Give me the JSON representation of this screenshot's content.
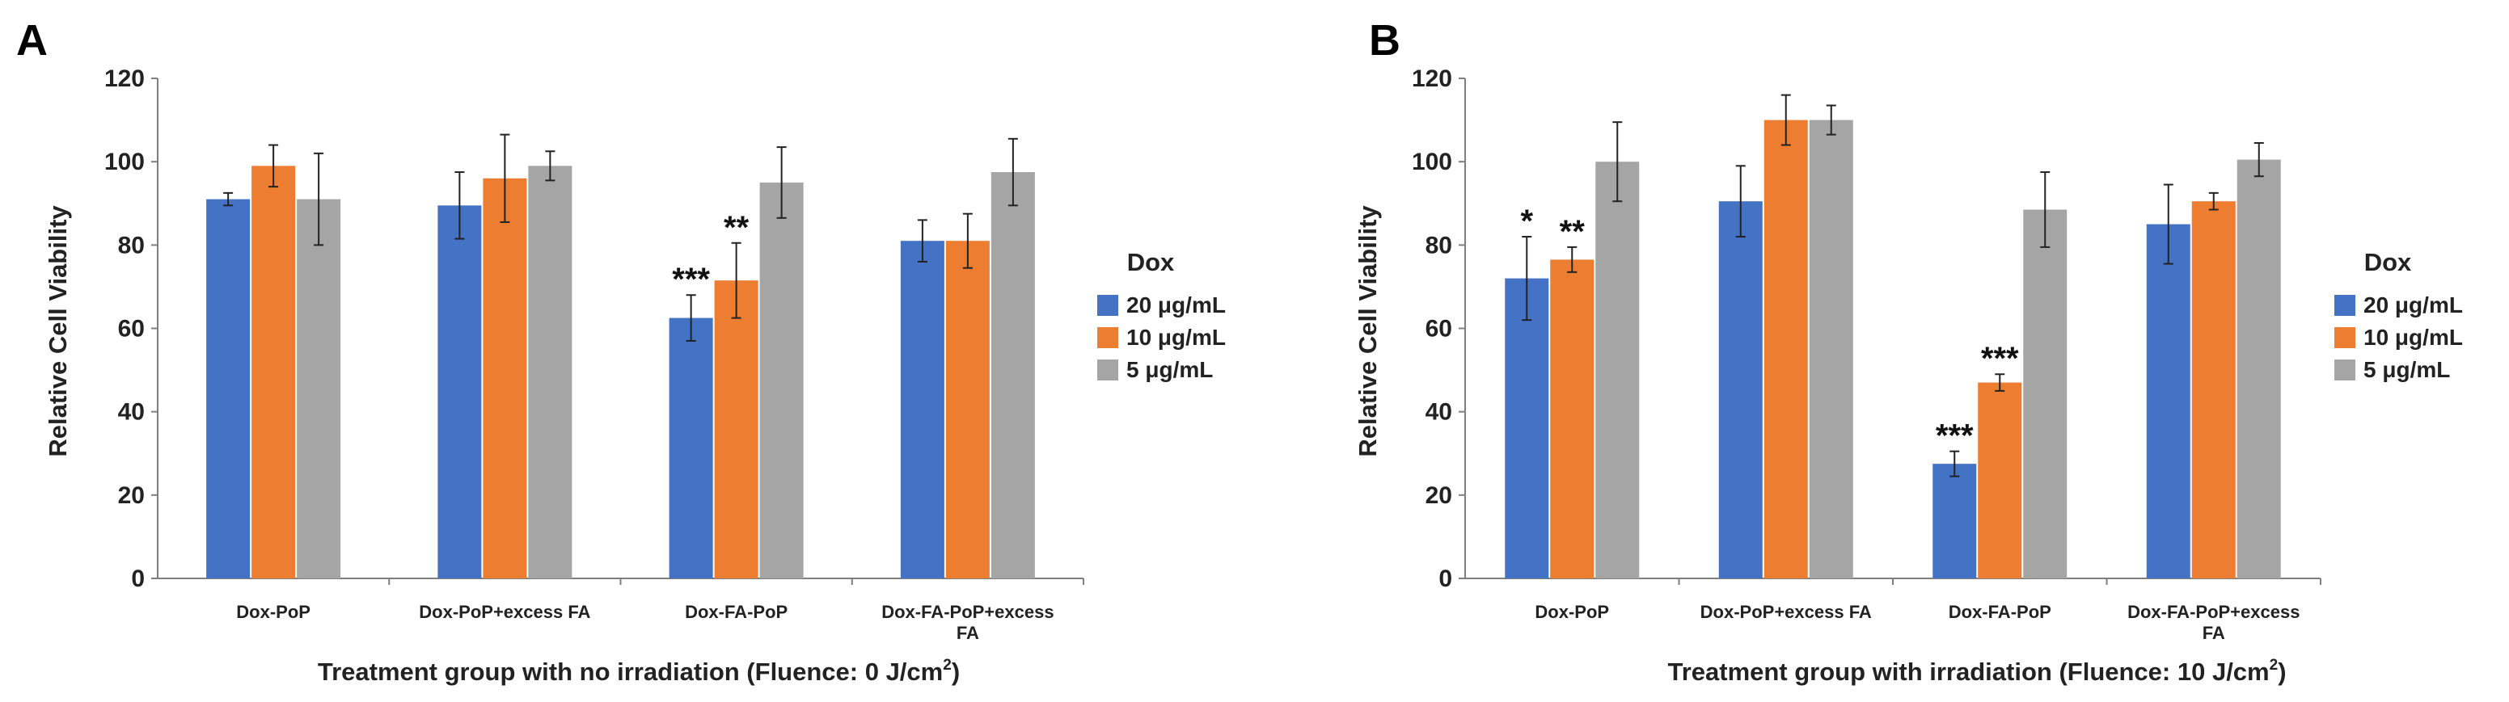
{
  "colors": {
    "s20": "#4472c4",
    "s10": "#ed7d31",
    "s5": "#a5a5a5",
    "axis": "#7f7f7f",
    "err": "#222222"
  },
  "chart_data": [
    {
      "type": "bar",
      "panel_label": "A",
      "categories": [
        "Dox-PoP",
        "Dox-PoP+excess FA",
        "Dox-FA-PoP",
        "Dox-FA-PoP+excess FA"
      ],
      "series": [
        {
          "name": "20 μg/mL",
          "color": "#4472c4",
          "values": [
            91,
            89.5,
            62.5,
            81
          ],
          "errors": [
            1.5,
            8,
            5.5,
            5
          ]
        },
        {
          "name": "10 μg/mL",
          "color": "#ed7d31",
          "values": [
            99,
            96,
            71.5,
            81
          ],
          "errors": [
            5,
            10.5,
            9,
            6.5
          ]
        },
        {
          "name": "5 μg/mL",
          "color": "#a5a5a5",
          "values": [
            91,
            99,
            95,
            97.5
          ],
          "errors": [
            11,
            3.5,
            8.5,
            8
          ]
        }
      ],
      "annotations": [
        {
          "category": 2,
          "series": 0,
          "text": "***"
        },
        {
          "category": 2,
          "series": 1,
          "text": "**"
        }
      ],
      "legend_title": "Dox",
      "xlabel_main": "Treatment group with no irradiation (Fluence: 0 J/cm",
      "xlabel_sup": "2",
      "xlabel_end": ")",
      "ylabel": "Relative Cell Viability",
      "ylim": [
        0,
        120
      ],
      "yticks": [
        0,
        20,
        40,
        60,
        80,
        100,
        120
      ],
      "legend_position": "right"
    },
    {
      "type": "bar",
      "panel_label": "B",
      "categories": [
        "Dox-PoP",
        "Dox-PoP+excess FA",
        "Dox-FA-PoP",
        "Dox-FA-PoP+excess FA"
      ],
      "series": [
        {
          "name": "20 μg/mL",
          "color": "#4472c4",
          "values": [
            72,
            90.5,
            27.5,
            85
          ],
          "errors": [
            10,
            8.5,
            3,
            9.5
          ]
        },
        {
          "name": "10 μg/mL",
          "color": "#ed7d31",
          "values": [
            76.5,
            110,
            47,
            90.5
          ],
          "errors": [
            3,
            6,
            2,
            2
          ]
        },
        {
          "name": "5 μg/mL",
          "color": "#a5a5a5",
          "values": [
            100,
            110,
            88.5,
            100.5
          ],
          "errors": [
            9.5,
            3.5,
            9,
            4
          ]
        }
      ],
      "annotations": [
        {
          "category": 0,
          "series": 0,
          "text": "*"
        },
        {
          "category": 0,
          "series": 1,
          "text": "**"
        },
        {
          "category": 2,
          "series": 0,
          "text": "***"
        },
        {
          "category": 2,
          "series": 1,
          "text": "***"
        }
      ],
      "legend_title": "Dox",
      "xlabel_main": "Treatment group with irradiation (Fluence: 10 J/cm",
      "xlabel_sup": "2",
      "xlabel_end": ")",
      "ylabel": "Relative Cell Viability",
      "ylim": [
        0,
        120
      ],
      "yticks": [
        0,
        20,
        40,
        60,
        80,
        100,
        120
      ],
      "legend_position": "right"
    }
  ]
}
